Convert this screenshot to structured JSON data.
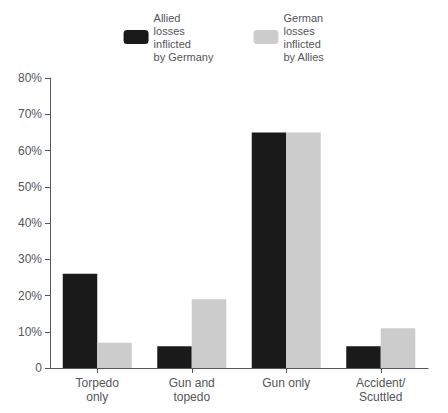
{
  "chart_data": {
    "type": "bar",
    "categories": [
      "Torpedo\nonly",
      "Gun and\ntopedo",
      "Gun only",
      "Accident/\nScuttled"
    ],
    "series": [
      {
        "name": "Allied\nlosses\ninflicted\nby Germany",
        "color": "#1a1a1a",
        "values": [
          26,
          6,
          65,
          6
        ]
      },
      {
        "name": "German\nlosses\ninflicted\nby Allies",
        "color": "#cccccc",
        "values": [
          7,
          19,
          65,
          11
        ]
      }
    ],
    "ylim": [
      0,
      80
    ],
    "yticks": [
      0,
      {
        "value": 10,
        "label": "10%"
      },
      {
        "value": 20,
        "label": "20%"
      },
      {
        "value": 30,
        "label": "30%"
      },
      {
        "value": 40,
        "label": "40%"
      },
      {
        "value": 50,
        "label": "50%"
      },
      {
        "value": 60,
        "label": "60%"
      },
      {
        "value": 70,
        "label": "70%"
      },
      {
        "value": 80,
        "label": "80%"
      }
    ],
    "grid": false,
    "legend": "top"
  }
}
